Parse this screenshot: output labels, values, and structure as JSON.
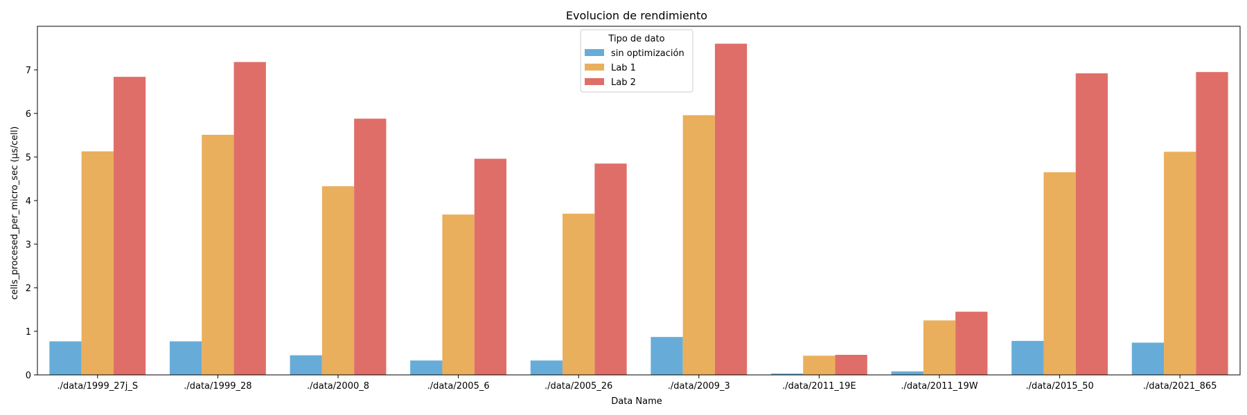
{
  "chart_data": {
    "type": "bar",
    "title": "Evolucion de rendimiento",
    "xlabel": "Data Name",
    "ylabel": "cells_procesed_per_micro_sec (µs/cell)",
    "ylim": [
      0,
      8
    ],
    "yticks": [
      0,
      1,
      2,
      3,
      4,
      5,
      6,
      7
    ],
    "grid": false,
    "legend": {
      "title": "Tipo de dato",
      "position": "top-center"
    },
    "categories": [
      "./data/1999_27j_S",
      "./data/1999_28",
      "./data/2000_8",
      "./data/2005_6",
      "./data/2005_26",
      "./data/2009_3",
      "./data/2011_19E",
      "./data/2011_19W",
      "./data/2015_50",
      "./data/2021_865"
    ],
    "series": [
      {
        "name": "sin optimización",
        "color": "#67acd8",
        "values": [
          0.77,
          0.77,
          0.45,
          0.33,
          0.33,
          0.87,
          0.03,
          0.08,
          0.78,
          0.74
        ]
      },
      {
        "name": "Lab 1",
        "color": "#eaaf5c",
        "values": [
          5.13,
          5.51,
          4.33,
          3.68,
          3.7,
          5.96,
          0.44,
          1.25,
          4.65,
          5.12
        ]
      },
      {
        "name": "Lab 2",
        "color": "#e06e68",
        "values": [
          6.84,
          7.18,
          5.88,
          4.96,
          4.85,
          7.6,
          0.46,
          1.45,
          6.92,
          6.95
        ]
      }
    ]
  }
}
